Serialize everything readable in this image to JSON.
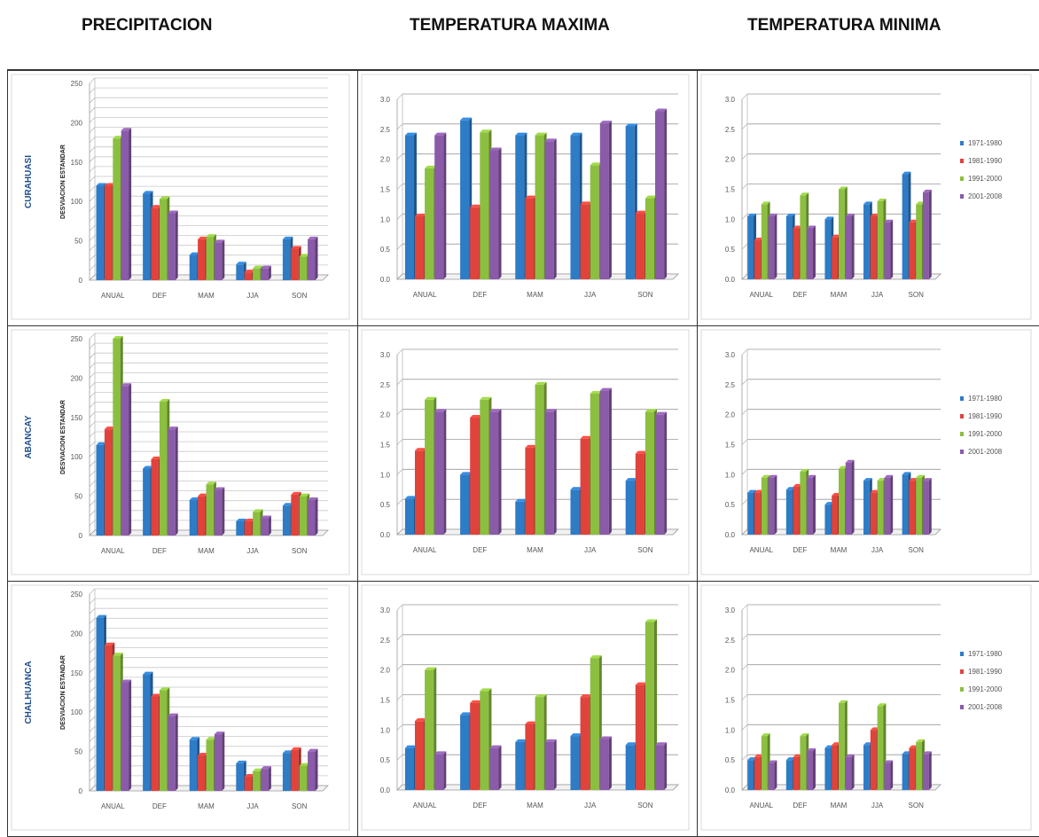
{
  "headers": {
    "precip": "PRECIPITACION",
    "tmax": "TEMPERATURA MAXIMA",
    "tmin": "TEMPERATURA MINIMA"
  },
  "stations": [
    "CURAHUASI",
    "ABANCAY",
    "CHALHUANCA"
  ],
  "ylabel": "DESVIACION ESTANDAR",
  "legend": [
    "1971-1980",
    "1981-1990",
    "1991-2000",
    "2001-2008"
  ],
  "colors": [
    "#2e7bc6",
    "#e0433c",
    "#8cbf3f",
    "#8a5ba8"
  ],
  "chart_data": [
    {
      "type": "bar",
      "station": "CURAHUASI",
      "variable": "PRECIPITACION",
      "ylabel": "DESVIACION ESTANDAR",
      "ylim": [
        0,
        250
      ],
      "yticks": [
        0,
        50,
        100,
        150,
        200,
        250
      ],
      "categories": [
        "ANUAL",
        "DEF",
        "MAM",
        "JJA",
        "SON"
      ],
      "series": [
        {
          "name": "1971-1980",
          "values": [
            120,
            110,
            32,
            20,
            52
          ]
        },
        {
          "name": "1981-1990",
          "values": [
            120,
            92,
            52,
            10,
            40
          ]
        },
        {
          "name": "1991-2000",
          "values": [
            180,
            103,
            55,
            15,
            30
          ]
        },
        {
          "name": "2001-2008",
          "values": [
            190,
            85,
            48,
            15,
            52
          ]
        }
      ]
    },
    {
      "type": "bar",
      "station": "CURAHUASI",
      "variable": "TEMPERATURA MAXIMA",
      "ylim": [
        0,
        3
      ],
      "yticks": [
        "0.0",
        "0.5",
        "1.0",
        "1.5",
        "2.0",
        "2.5",
        "3.0"
      ],
      "categories": [
        "ANUAL",
        "DEF",
        "MAM",
        "JJA",
        "SON"
      ],
      "series": [
        {
          "name": "1971-1980",
          "values": [
            2.4,
            2.65,
            2.4,
            2.4,
            2.55
          ]
        },
        {
          "name": "1981-1990",
          "values": [
            1.05,
            1.2,
            1.35,
            1.25,
            1.1
          ]
        },
        {
          "name": "1991-2000",
          "values": [
            1.85,
            2.45,
            2.4,
            1.9,
            1.35
          ]
        },
        {
          "name": "2001-2008",
          "values": [
            2.4,
            2.15,
            2.3,
            2.6,
            2.8
          ]
        }
      ]
    },
    {
      "type": "bar",
      "station": "CURAHUASI",
      "variable": "TEMPERATURA MINIMA",
      "ylim": [
        0,
        3
      ],
      "yticks": [
        "0.0",
        "0.5",
        "1.0",
        "1.5",
        "2.0",
        "2.5",
        "3.0"
      ],
      "categories": [
        "ANUAL",
        "DEF",
        "MAM",
        "JJA",
        "SON"
      ],
      "series": [
        {
          "name": "1971-1980",
          "values": [
            1.05,
            1.05,
            1.0,
            1.25,
            1.75
          ]
        },
        {
          "name": "1981-1990",
          "values": [
            0.65,
            0.85,
            0.7,
            1.05,
            0.95
          ]
        },
        {
          "name": "1991-2000",
          "values": [
            1.25,
            1.4,
            1.5,
            1.3,
            1.25
          ]
        },
        {
          "name": "2001-2008",
          "values": [
            1.05,
            0.85,
            1.05,
            0.95,
            1.45
          ]
        }
      ]
    },
    {
      "type": "bar",
      "station": "ABANCAY",
      "variable": "PRECIPITACION",
      "ylabel": "DESVIACION ESTANDAR",
      "ylim": [
        0,
        250
      ],
      "yticks": [
        0,
        50,
        100,
        150,
        200,
        250
      ],
      "categories": [
        "ANUAL",
        "DEF",
        "MAM",
        "JJA",
        "SON"
      ],
      "series": [
        {
          "name": "1971-1980",
          "values": [
            115,
            85,
            45,
            18,
            38
          ]
        },
        {
          "name": "1981-1990",
          "values": [
            135,
            97,
            50,
            18,
            52
          ]
        },
        {
          "name": "1991-2000",
          "values": [
            250,
            170,
            65,
            30,
            50
          ]
        },
        {
          "name": "2001-2008",
          "values": [
            190,
            135,
            58,
            22,
            45
          ]
        }
      ]
    },
    {
      "type": "bar",
      "station": "ABANCAY",
      "variable": "TEMPERATURA MAXIMA",
      "ylim": [
        0,
        3
      ],
      "yticks": [
        "0.0",
        "0.5",
        "1.0",
        "1.5",
        "2.0",
        "2.5",
        "3.0"
      ],
      "categories": [
        "ANUAL",
        "DEF",
        "MAM",
        "JJA",
        "SON"
      ],
      "series": [
        {
          "name": "1971-1980",
          "values": [
            0.6,
            1.0,
            0.55,
            0.75,
            0.9
          ]
        },
        {
          "name": "1981-1990",
          "values": [
            1.4,
            1.95,
            1.45,
            1.6,
            1.35
          ]
        },
        {
          "name": "1991-2000",
          "values": [
            2.25,
            2.25,
            2.5,
            2.35,
            2.05
          ]
        },
        {
          "name": "2001-2008",
          "values": [
            2.05,
            2.05,
            2.05,
            2.4,
            2.0
          ]
        }
      ]
    },
    {
      "type": "bar",
      "station": "ABANCAY",
      "variable": "TEMPERATURA MINIMA",
      "ylim": [
        0,
        3
      ],
      "yticks": [
        "0.0",
        "0.5",
        "1.0",
        "1.5",
        "2.0",
        "2.5",
        "3.0"
      ],
      "categories": [
        "ANUAL",
        "DEF",
        "MAM",
        "JJA",
        "SON"
      ],
      "series": [
        {
          "name": "1971-1980",
          "values": [
            0.7,
            0.75,
            0.5,
            0.9,
            1.0
          ]
        },
        {
          "name": "1981-1990",
          "values": [
            0.7,
            0.8,
            0.65,
            0.7,
            0.9
          ]
        },
        {
          "name": "1991-2000",
          "values": [
            0.95,
            1.05,
            1.1,
            0.9,
            0.95
          ]
        },
        {
          "name": "2001-2008",
          "values": [
            0.95,
            0.95,
            1.2,
            0.95,
            0.9
          ]
        }
      ]
    },
    {
      "type": "bar",
      "station": "CHALHUANCA",
      "variable": "PRECIPITACION",
      "ylabel": "DESVIACION ESTANDAR",
      "ylim": [
        0,
        250
      ],
      "yticks": [
        0,
        50,
        100,
        150,
        200,
        250
      ],
      "categories": [
        "ANUAL",
        "DEF",
        "MAM",
        "JJA",
        "SON"
      ],
      "series": [
        {
          "name": "1971-1980",
          "values": [
            220,
            148,
            65,
            35,
            48
          ]
        },
        {
          "name": "1981-1990",
          "values": [
            185,
            120,
            45,
            18,
            52
          ]
        },
        {
          "name": "1991-2000",
          "values": [
            172,
            128,
            65,
            25,
            32
          ]
        },
        {
          "name": "2001-2008",
          "values": [
            138,
            95,
            72,
            28,
            50
          ]
        }
      ]
    },
    {
      "type": "bar",
      "station": "CHALHUANCA",
      "variable": "TEMPERATURA MAXIMA",
      "ylim": [
        0,
        3
      ],
      "yticks": [
        "0.0",
        "0.5",
        "1.0",
        "1.5",
        "2.0",
        "2.5",
        "3.0"
      ],
      "categories": [
        "ANUAL",
        "DEF",
        "MAM",
        "JJA",
        "SON"
      ],
      "series": [
        {
          "name": "1971-1980",
          "values": [
            0.7,
            1.25,
            0.8,
            0.9,
            0.75
          ]
        },
        {
          "name": "1981-1990",
          "values": [
            1.15,
            1.45,
            1.1,
            1.55,
            1.75
          ]
        },
        {
          "name": "1991-2000",
          "values": [
            2.0,
            1.65,
            1.55,
            2.2,
            2.8
          ]
        },
        {
          "name": "2001-2008",
          "values": [
            0.6,
            0.7,
            0.8,
            0.85,
            0.75
          ]
        }
      ]
    },
    {
      "type": "bar",
      "station": "CHALHUANCA",
      "variable": "TEMPERATURA MINIMA",
      "ylim": [
        0,
        3
      ],
      "yticks": [
        "0.0",
        "0.5",
        "1.0",
        "1.5",
        "2.0",
        "2.5",
        "3.0"
      ],
      "categories": [
        "ANUAL",
        "DEF",
        "MAM",
        "JJA",
        "SON"
      ],
      "series": [
        {
          "name": "1971-1980",
          "values": [
            0.5,
            0.5,
            0.7,
            0.75,
            0.6
          ]
        },
        {
          "name": "1981-1990",
          "values": [
            0.55,
            0.55,
            0.75,
            1.0,
            0.7
          ]
        },
        {
          "name": "1991-2000",
          "values": [
            0.9,
            0.9,
            1.45,
            1.4,
            0.8
          ]
        },
        {
          "name": "2001-2008",
          "values": [
            0.45,
            0.65,
            0.55,
            0.45,
            0.6
          ]
        }
      ]
    }
  ]
}
